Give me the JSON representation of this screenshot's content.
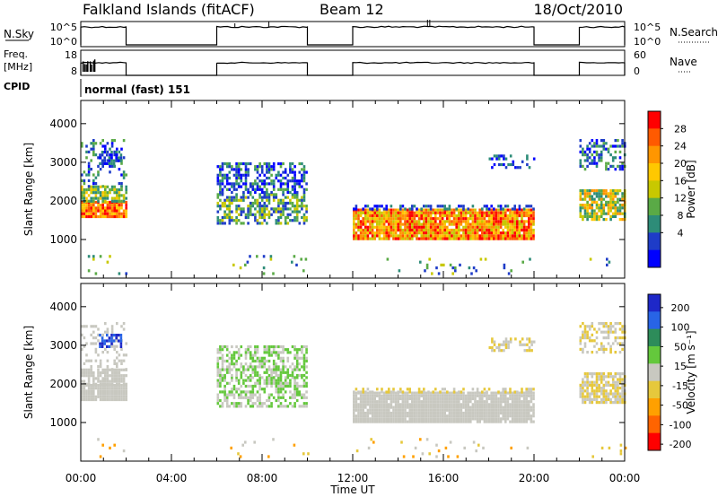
{
  "header": {
    "station": "Falkland Islands (fitACF)",
    "beam": "Beam 12",
    "date": "18/Oct/2010"
  },
  "strips": {
    "nsky": {
      "left_label": "N.Sky",
      "right_label": "N.Search",
      "left_ticks": [
        "10^5",
        "10^0"
      ],
      "right_ticks": [
        "10^5",
        "10^0"
      ]
    },
    "freq": {
      "left_label_1": "Freq.",
      "left_label_2": "[MHz]",
      "right_label": "Nave",
      "left_ticks": [
        "18",
        "8"
      ],
      "right_ticks": [
        "60",
        "0"
      ]
    },
    "cpid": {
      "left_label": "CPID",
      "text": "normal (fast) 151"
    }
  },
  "chart_data": [
    {
      "type": "heatmap",
      "panel": "power",
      "xlabel": "Time UT",
      "ylabel": "Slant Range [km]",
      "y_ticks": [
        1000,
        2000,
        3000,
        4000
      ],
      "x_ticks": [
        "00:00",
        "04:00",
        "08:00",
        "12:00",
        "16:00",
        "20:00",
        "00:00"
      ],
      "colorbar_label": "Power [dB]",
      "colorbar_ticks": [
        "28",
        "24",
        "20",
        "16",
        "12",
        "8",
        "4"
      ],
      "colorbar_colors": [
        "#ff0000",
        "#ff5a00",
        "#ff9600",
        "#ffc800",
        "#c8c800",
        "#5aaa46",
        "#2d8c78",
        "#1e3cc8",
        "#0000ff"
      ]
    },
    {
      "type": "heatmap",
      "panel": "velocity",
      "xlabel": "Time UT",
      "ylabel": "Slant Range [km]",
      "y_ticks": [
        1000,
        2000,
        3000,
        4000
      ],
      "x_ticks": [
        "00:00",
        "04:00",
        "08:00",
        "12:00",
        "16:00",
        "20:00",
        "00:00"
      ],
      "colorbar_label": "Velocity [m s⁻¹]",
      "colorbar_ticks": [
        "200",
        "100",
        "50",
        "15",
        "-15",
        "-50",
        "-100",
        "-200"
      ],
      "colorbar_colors": [
        "#1e28c8",
        "#2864e6",
        "#2d8c5a",
        "#64c83c",
        "#c8c8c0",
        "#e6c83c",
        "#ffa000",
        "#ff6400",
        "#ff0000"
      ]
    }
  ]
}
